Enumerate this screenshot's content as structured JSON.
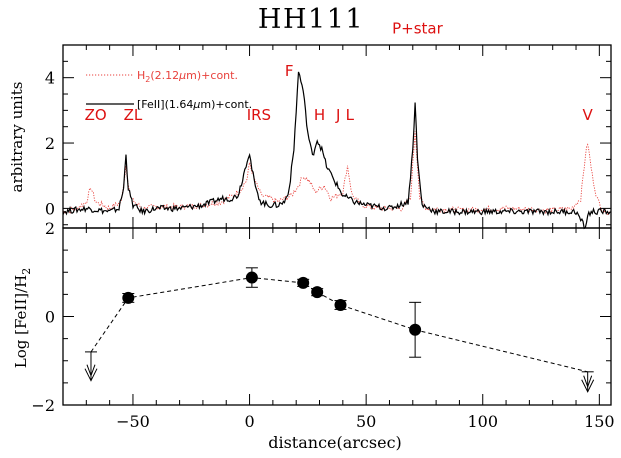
{
  "chart_data": [
    {
      "type": "line",
      "title": "HH111",
      "xlabel": "distance(arcsec)",
      "ylabel": "arbitrary units",
      "xlim": [
        -80,
        155
      ],
      "ylim": [
        -0.6,
        5.0
      ],
      "grid": false,
      "xticks": [
        -50,
        0,
        50,
        100,
        150
      ],
      "yticks": [
        0,
        2,
        4
      ],
      "legend_position": "top-left",
      "series": [
        {
          "name": "H2(2.12μm)+cont.",
          "legend_prefix": "H",
          "legend_sub": "2",
          "legend_mu": "μ",
          "legend_rest": "m)+cont.",
          "color": "#e8413c",
          "style": "dotted",
          "x": [
            -80,
            -74,
            -70,
            -68,
            -66,
            -60,
            -55,
            -53,
            -51,
            -46,
            -40,
            -30,
            -20,
            -12,
            -7,
            -4,
            -1,
            0,
            2,
            5,
            9,
            12,
            18,
            21,
            23,
            26,
            28,
            30,
            32,
            35,
            40,
            42,
            44,
            48,
            55,
            65,
            69,
            71,
            73,
            76,
            90,
            110,
            130,
            138,
            142,
            144,
            145,
            147,
            149,
            152,
            155
          ],
          "y": [
            -0.1,
            0.0,
            0.2,
            0.65,
            0.2,
            0.0,
            0.2,
            1.3,
            0.3,
            0.0,
            0.05,
            0.05,
            0.1,
            0.2,
            0.4,
            0.55,
            0.9,
            1.4,
            0.9,
            0.4,
            0.3,
            0.2,
            0.4,
            0.7,
            1.0,
            0.8,
            0.5,
            0.6,
            0.7,
            0.3,
            0.5,
            1.3,
            0.4,
            0.1,
            0.0,
            0.0,
            0.3,
            2.4,
            0.3,
            0.0,
            -0.05,
            0.0,
            -0.05,
            0.0,
            0.3,
            1.6,
            2.0,
            1.0,
            0.3,
            -0.1,
            -0.1
          ]
        },
        {
          "name": "[FeII](1.64μm)+cont.",
          "legend_prefix": "[FeII](1.64",
          "legend_mu": "μ",
          "legend_rest": "m)+cont.",
          "color": "#000000",
          "style": "solid",
          "x": [
            -80,
            -70,
            -60,
            -56,
            -54,
            -53,
            -52,
            -50,
            -46,
            -40,
            -30,
            -20,
            -12,
            -8,
            -5,
            -3,
            -1,
            0,
            1,
            3,
            5,
            8,
            12,
            15,
            17,
            19,
            20,
            21,
            22,
            23,
            25,
            27,
            29,
            31,
            33,
            36,
            40,
            45,
            50,
            60,
            68,
            70,
            71,
            72,
            74,
            80,
            100,
            120,
            140,
            144,
            145,
            147,
            150,
            155
          ],
          "y": [
            -0.1,
            0.0,
            -0.1,
            0.0,
            0.6,
            1.7,
            0.6,
            0.1,
            -0.1,
            0.0,
            0.0,
            0.1,
            0.3,
            0.3,
            0.4,
            0.9,
            1.5,
            1.7,
            1.2,
            0.5,
            0.2,
            0.1,
            0.1,
            0.2,
            0.6,
            1.8,
            3.0,
            4.2,
            3.9,
            3.6,
            2.3,
            1.6,
            2.1,
            1.8,
            1.3,
            0.9,
            0.4,
            0.2,
            0.1,
            0.0,
            0.2,
            1.8,
            3.3,
            1.5,
            0.1,
            -0.1,
            -0.1,
            -0.1,
            -0.1,
            -0.6,
            -0.2,
            -0.1,
            -0.1,
            -0.1
          ]
        }
      ],
      "annotations": [
        {
          "text": "ZO",
          "x": -66,
          "y": 2.7
        },
        {
          "text": "ZL",
          "x": -50,
          "y": 2.7
        },
        {
          "text": "IRS",
          "x": 4,
          "y": 2.7
        },
        {
          "text": "F",
          "x": 17,
          "y": 4.05
        },
        {
          "text": "H",
          "x": 30,
          "y": 2.7
        },
        {
          "text": "J",
          "x": 38,
          "y": 2.7
        },
        {
          "text": "L",
          "x": 43,
          "y": 2.7
        },
        {
          "text": "P+star",
          "x": 72,
          "y": 5.35
        },
        {
          "text": "V",
          "x": 145,
          "y": 2.7
        }
      ],
      "annotation_color": "#dd1111"
    },
    {
      "type": "scatter",
      "xlabel": "distance(arcsec)",
      "ylabel_main": "Log [FeII]/H",
      "ylabel_sub": "2",
      "xlim": [
        -80,
        155
      ],
      "ylim": [
        -2,
        2
      ],
      "grid": false,
      "xticks": [
        -50,
        0,
        50,
        100,
        150
      ],
      "yticks": [
        -2,
        0,
        2
      ],
      "points": [
        {
          "x": -52,
          "y": 0.42,
          "err": 0.1
        },
        {
          "x": 1,
          "y": 0.88,
          "err": 0.22
        },
        {
          "x": 23,
          "y": 0.76,
          "err": 0.08
        },
        {
          "x": 29,
          "y": 0.55,
          "err": 0.08
        },
        {
          "x": 39,
          "y": 0.26,
          "err": 0.1
        },
        {
          "x": 71,
          "y": -0.3,
          "err": 0.62
        }
      ],
      "upper_limits": [
        {
          "x": -68,
          "y": -0.8,
          "arrow_to": -1.45
        },
        {
          "x": 145,
          "y": -1.25,
          "arrow_to": -1.7
        }
      ],
      "connect_line": "dashed"
    }
  ]
}
